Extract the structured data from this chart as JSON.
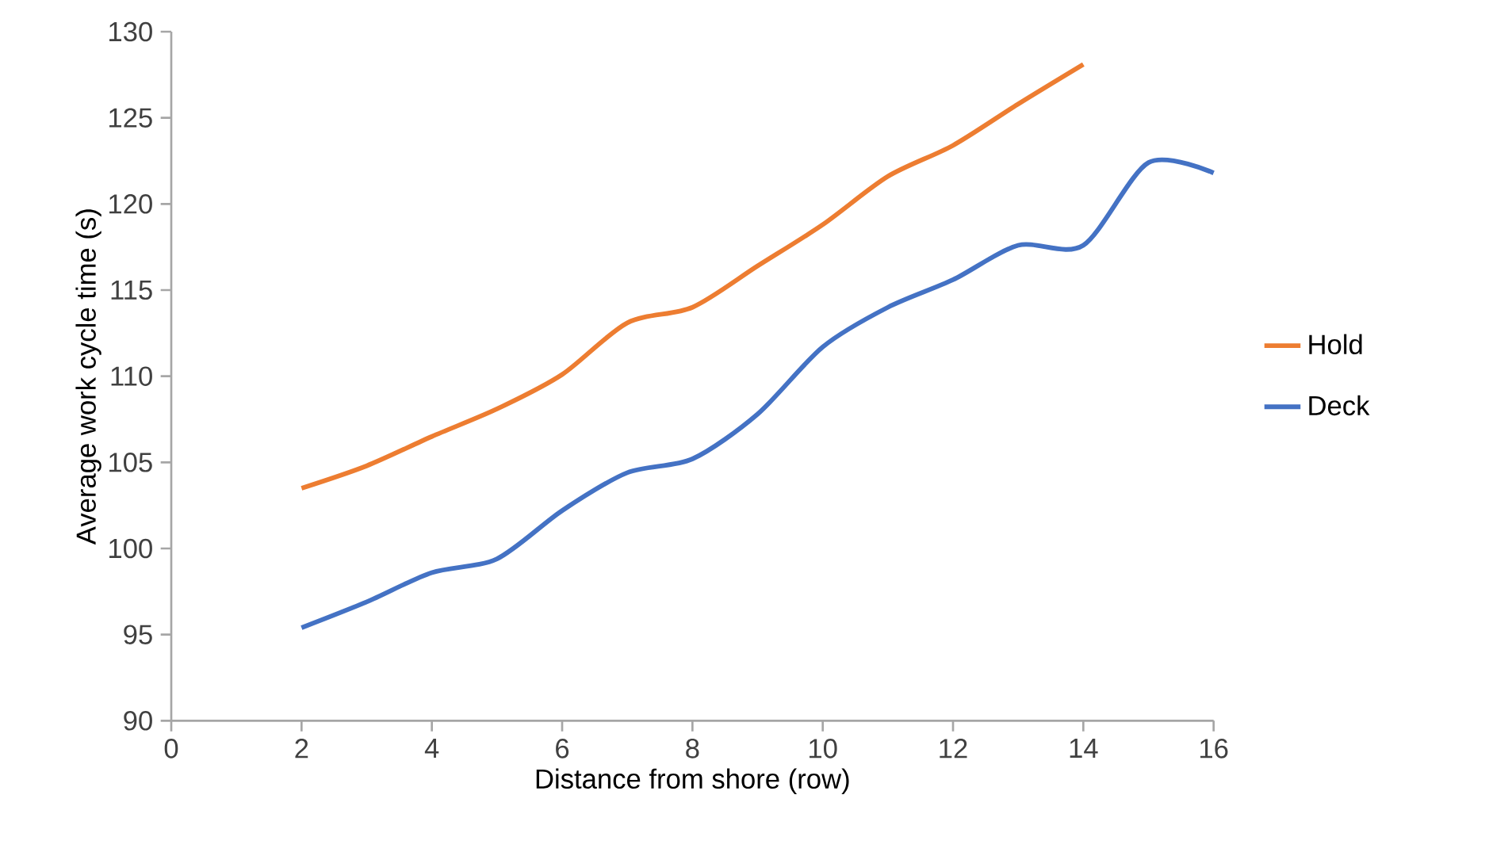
{
  "chart_data": {
    "type": "line",
    "xlabel": "Distance from shore (row)",
    "ylabel": "Average work cycle time (s)",
    "xlim": [
      0,
      16
    ],
    "xticks": [
      0,
      2,
      4,
      6,
      8,
      10,
      12,
      14,
      16
    ],
    "ylim": [
      90,
      130
    ],
    "yticks": [
      90,
      95,
      100,
      105,
      110,
      115,
      120,
      125,
      130
    ],
    "grid": false,
    "legend": "right",
    "marker": "none",
    "line_style": "solid",
    "series": [
      {
        "name": "Hold",
        "color": "#ed7d31",
        "x": [
          2,
          3,
          4,
          5,
          6,
          7,
          8,
          9,
          10,
          11,
          12,
          13,
          14
        ],
        "values": [
          103.5,
          104.8,
          106.5,
          108.1,
          110.1,
          113.1,
          114.0,
          116.4,
          118.8,
          121.6,
          123.4,
          125.8,
          128.1
        ]
      },
      {
        "name": "Deck",
        "color": "#4472c4",
        "x": [
          2,
          3,
          4,
          5,
          6,
          7,
          8,
          9,
          10,
          11,
          12,
          13,
          14,
          15,
          16
        ],
        "values": [
          95.4,
          96.9,
          98.6,
          99.4,
          102.2,
          104.4,
          105.2,
          107.8,
          111.7,
          114.0,
          115.6,
          117.6,
          117.6,
          122.4,
          121.8
        ]
      }
    ]
  }
}
